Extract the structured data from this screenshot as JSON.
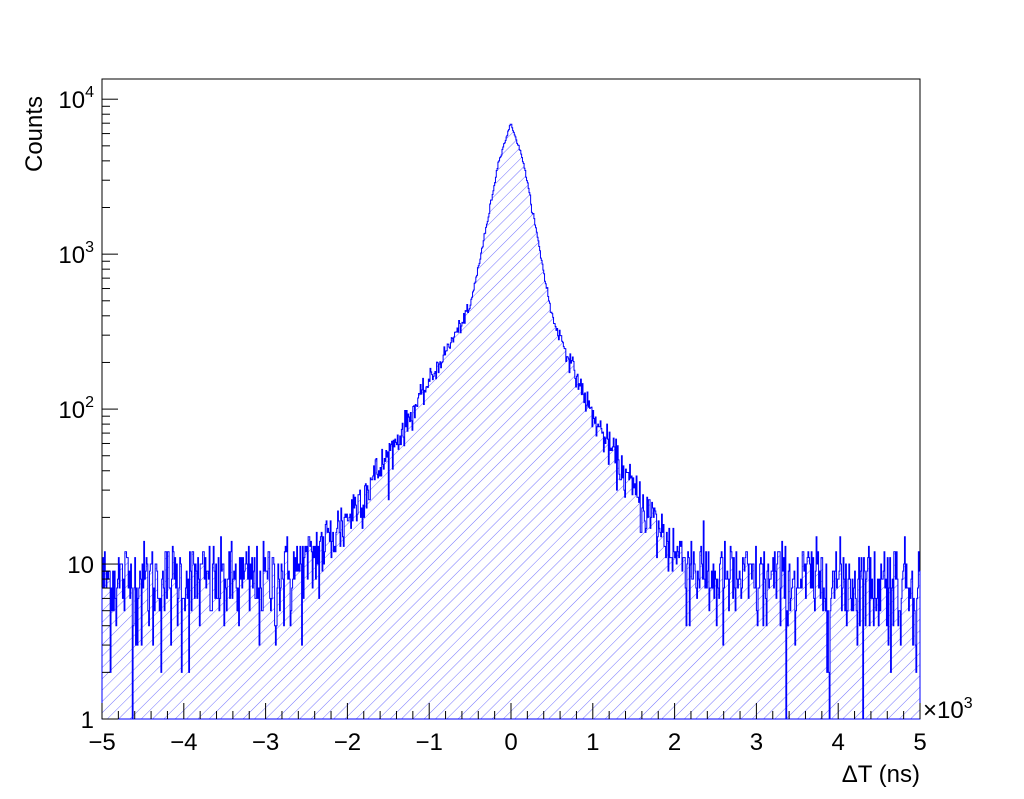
{
  "chart_data": {
    "type": "histogram",
    "xlabel": "ΔT (ns)",
    "ylabel": "Counts",
    "x_multiplier": "×10",
    "x_multiplier_exp": "3",
    "xlim": [
      -5000,
      5000
    ],
    "ylim": [
      1,
      13500
    ],
    "y_scale": "log",
    "x_ticks": [
      {
        "value": -5000,
        "label": "−5"
      },
      {
        "value": -4000,
        "label": "−4"
      },
      {
        "value": -3000,
        "label": "−3"
      },
      {
        "value": -2000,
        "label": "−2"
      },
      {
        "value": -1000,
        "label": "−1"
      },
      {
        "value": 0,
        "label": "0"
      },
      {
        "value": 1000,
        "label": "1"
      },
      {
        "value": 2000,
        "label": "2"
      },
      {
        "value": 3000,
        "label": "3"
      },
      {
        "value": 4000,
        "label": "4"
      },
      {
        "value": 5000,
        "label": "5"
      }
    ],
    "y_ticks": [
      {
        "value": 1,
        "label": "1",
        "exp": ""
      },
      {
        "value": 10,
        "label": "10",
        "exp": ""
      },
      {
        "value": 100,
        "label": "10",
        "exp": "2"
      },
      {
        "value": 1000,
        "label": "10",
        "exp": "3"
      },
      {
        "value": 10000,
        "label": "10",
        "exp": "4"
      }
    ],
    "series": [
      {
        "fill": "hatched",
        "color": "#0000ff",
        "peak": {
          "x": 0,
          "y": 7000
        },
        "shape_points": [
          {
            "x": -5000,
            "y": 8
          },
          {
            "x": -4000,
            "y": 8
          },
          {
            "x": -3000,
            "y": 8
          },
          {
            "x": -2500,
            "y": 10
          },
          {
            "x": -2000,
            "y": 20
          },
          {
            "x": -1500,
            "y": 50
          },
          {
            "x": -1000,
            "y": 150
          },
          {
            "x": -500,
            "y": 450
          },
          {
            "x": -300,
            "y": 1500
          },
          {
            "x": -150,
            "y": 4000
          },
          {
            "x": 0,
            "y": 7000
          },
          {
            "x": 150,
            "y": 4000
          },
          {
            "x": 300,
            "y": 1500
          },
          {
            "x": 500,
            "y": 400
          },
          {
            "x": 1000,
            "y": 90
          },
          {
            "x": 1500,
            "y": 30
          },
          {
            "x": 2000,
            "y": 12
          },
          {
            "x": 2500,
            "y": 8
          },
          {
            "x": 3000,
            "y": 8
          },
          {
            "x": 4000,
            "y": 8
          },
          {
            "x": 5000,
            "y": 8
          }
        ]
      }
    ],
    "grid": false,
    "legend": "none"
  }
}
